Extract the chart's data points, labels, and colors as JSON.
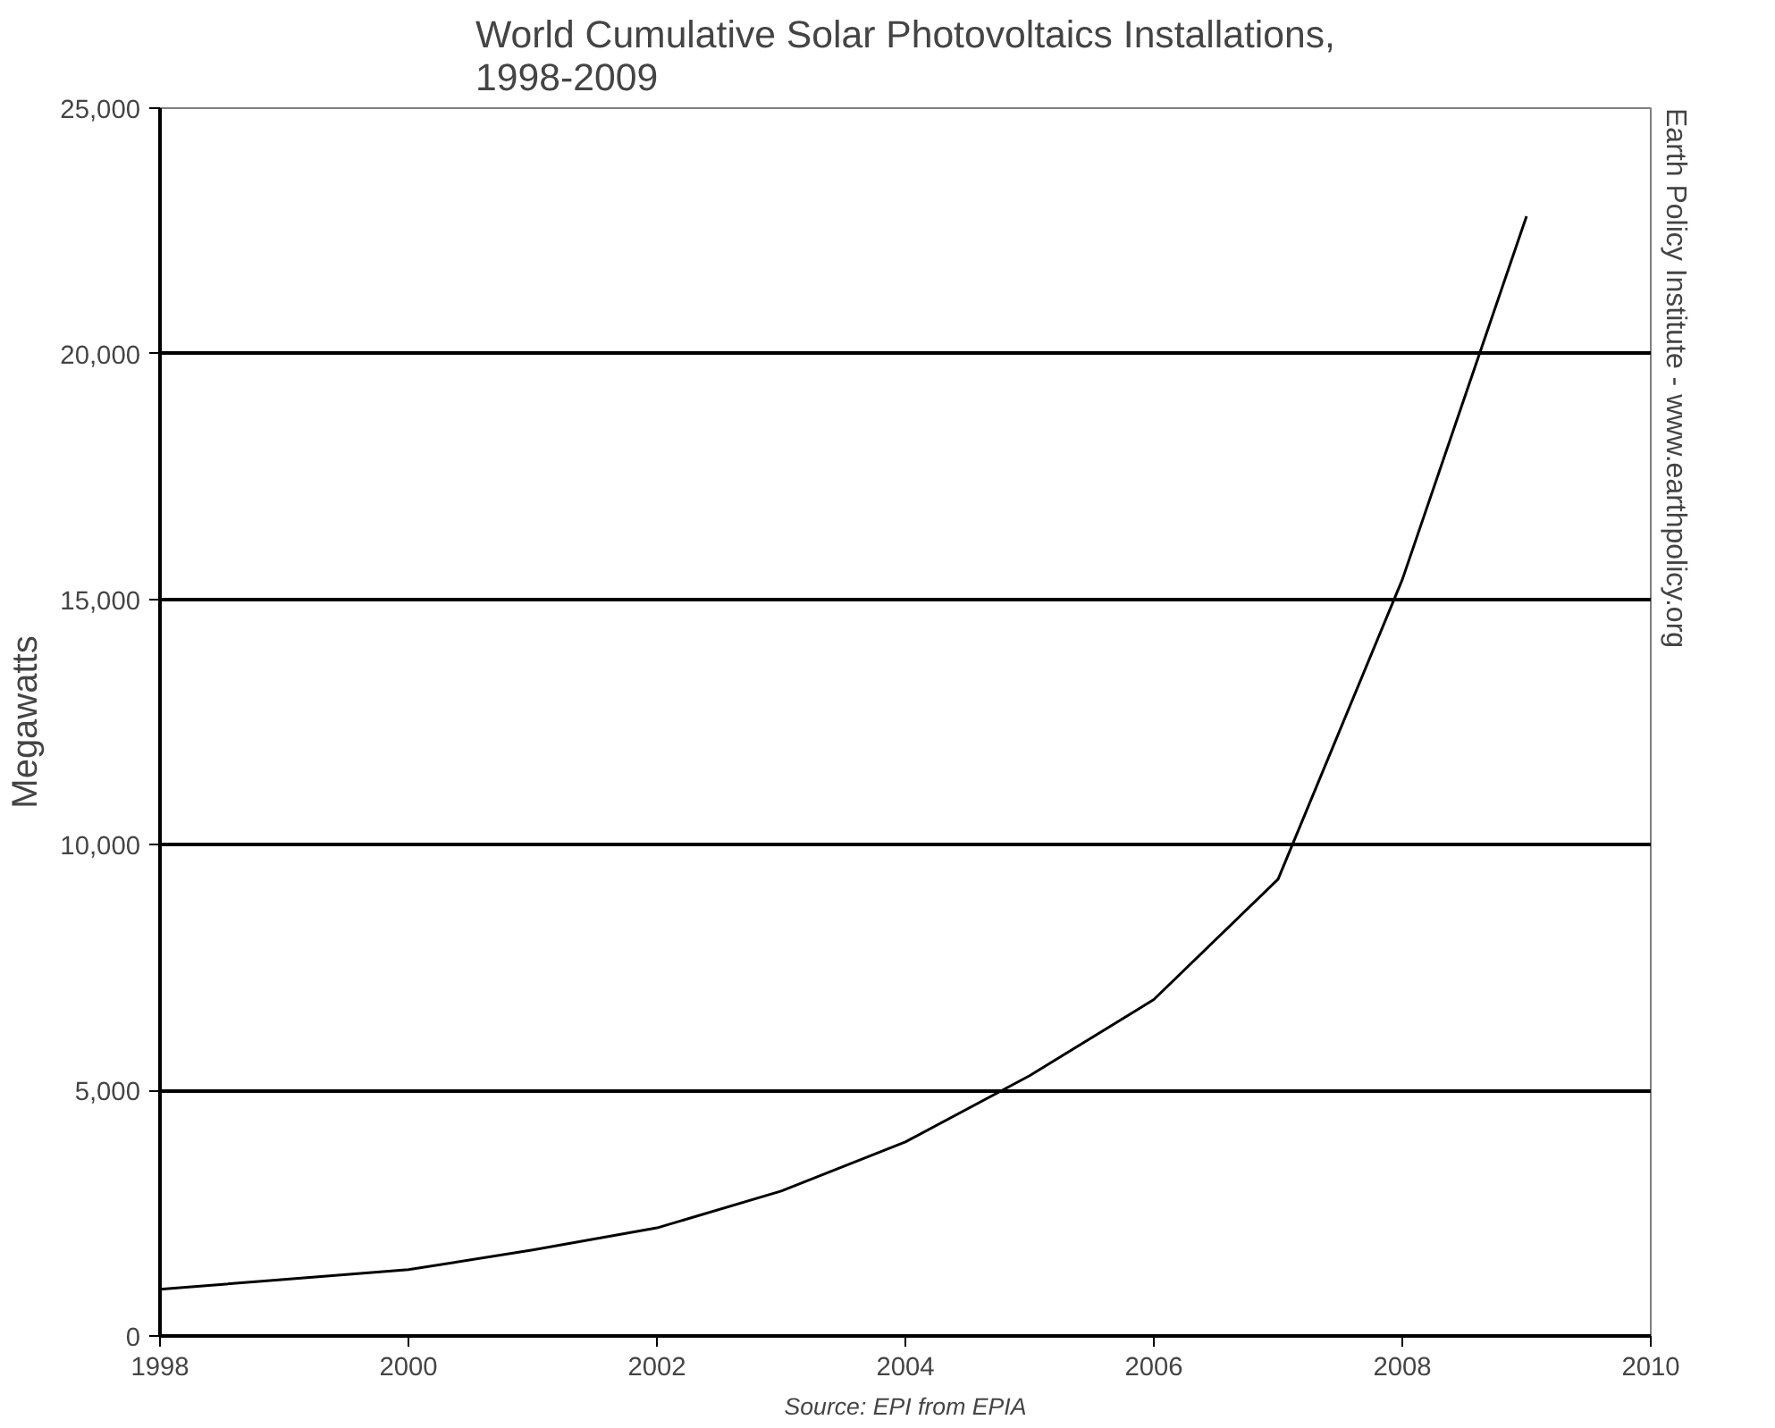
{
  "chart_data": {
    "type": "line",
    "title": "World Cumulative Solar Photovoltaics Installations,\n1998-2009",
    "ylabel": "Megawatts",
    "x": [
      1998,
      1999,
      2000,
      2001,
      2002,
      2003,
      2004,
      2005,
      2006,
      2007,
      2008,
      2009
    ],
    "series": [
      {
        "color": "#000000",
        "values": [
          950,
          1150,
          1350,
          1750,
          2200,
          2950,
          3950,
          5300,
          6850,
          9300,
          15400,
          22800
        ]
      }
    ],
    "xlim": [
      1998,
      2010
    ],
    "xticks": [
      1998,
      2000,
      2002,
      2004,
      2006,
      2008,
      2010
    ],
    "ylim": [
      0,
      25000
    ],
    "yticks": [
      {
        "value": 0,
        "label": "0"
      },
      {
        "value": 5000,
        "label": "5,000"
      },
      {
        "value": 10000,
        "label": "10,000"
      },
      {
        "value": 15000,
        "label": "15,000"
      },
      {
        "value": 20000,
        "label": "20,000"
      },
      {
        "value": 25000,
        "label": "25,000"
      }
    ],
    "grid": "y",
    "marker": "none",
    "line_style": "solid",
    "annotations": [
      "Earth Policy Institute - www.earthpolicy.org",
      "Source: EPI from EPIA"
    ]
  }
}
